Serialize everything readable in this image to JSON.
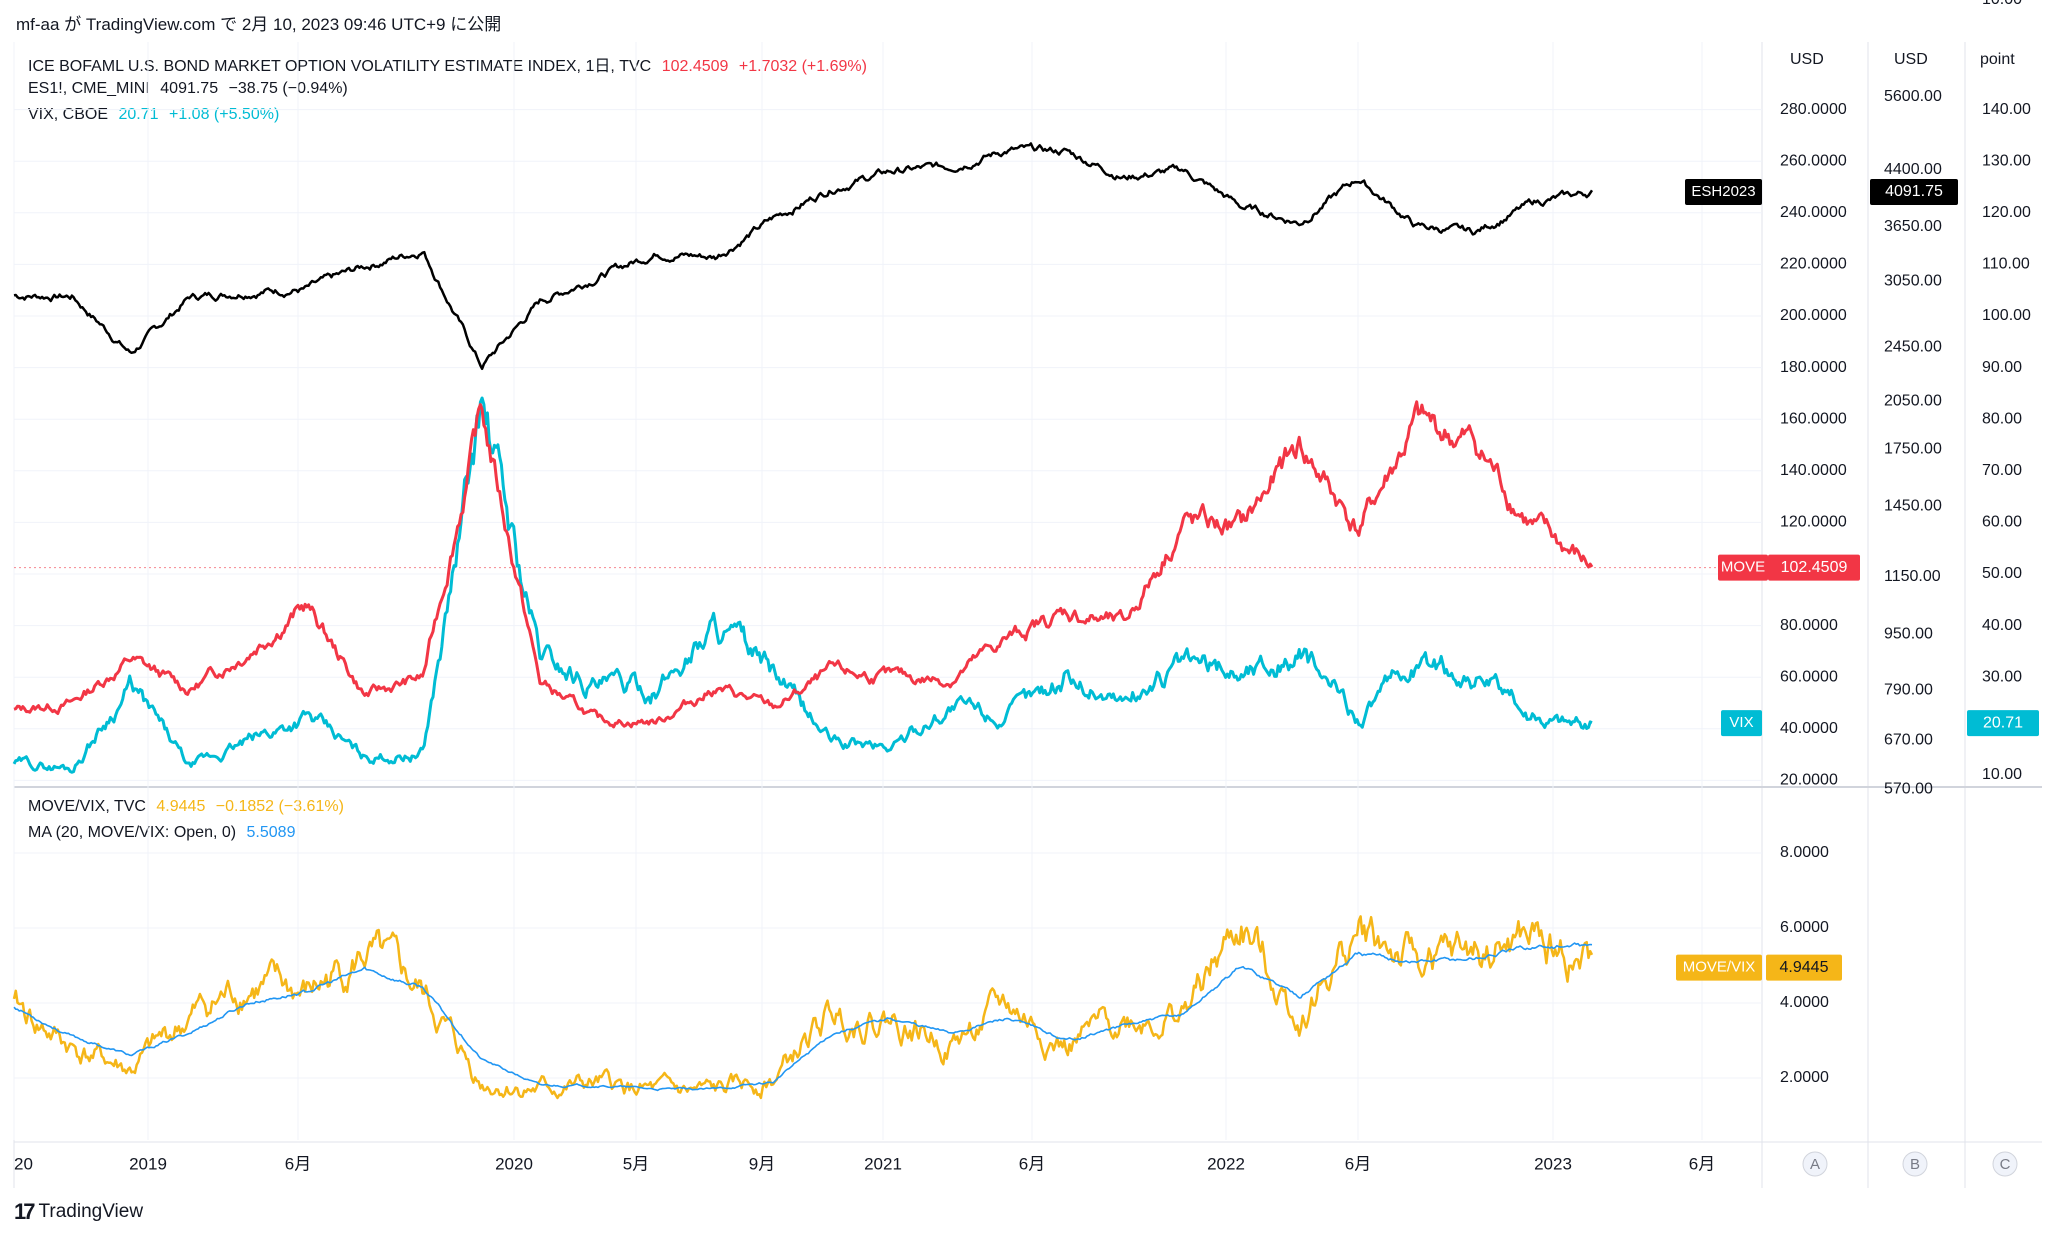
{
  "header": {
    "publisher": "mf-aa",
    "text": "が TradingView.com で 2月 10, 2023 09:46 UTC+9 に公開"
  },
  "legend_top": [
    {
      "name": "ICE BOFAML U.S. BOND MARKET OPTION VOLATILITY ESTIMATE INDEX, 1日, TVC",
      "value": "102.4509",
      "change": "+1.7032 (+1.69%)",
      "color": "#f23645"
    },
    {
      "name": "ES1!, CME_MINI",
      "value": "4091.75",
      "change": "−38.75 (−0.94%)",
      "color": "#131722"
    },
    {
      "name": "VIX, CBOE",
      "value": "20.71",
      "change": "+1.08 (+5.50%)",
      "color": "#00bcd4"
    }
  ],
  "legend_bottom": [
    {
      "name": "MOVE/VIX, TVC",
      "value": "4.9445",
      "change": "−0.1852 (−3.61%)",
      "color": "#f5b618"
    },
    {
      "name": "MA (20, MOVE/VIX: Open, 0)",
      "value": "5.5089",
      "change": "",
      "color": "#2196f3"
    }
  ],
  "axes": {
    "unit_a": "USD",
    "unit_b": "USD",
    "unit_c": "point",
    "scale_a_ticks": [
      "280.0000",
      "260.0000",
      "240.0000",
      "220.0000",
      "200.0000",
      "180.0000",
      "160.0000",
      "140.0000",
      "120.0000",
      "100.0000",
      "80.0000",
      "60.0000",
      "40.0000",
      "20.0000"
    ],
    "scale_b_ticks": [
      "5600.00",
      "4400.00",
      "3650.00",
      "3050.00",
      "2450.00",
      "2050.00",
      "1750.00",
      "1450.00",
      "1150.00",
      "950.00",
      "790.00",
      "670.00",
      "570.00"
    ],
    "scale_c_ticks": [
      "140.00",
      "130.00",
      "120.00",
      "110.00",
      "100.00",
      "90.00",
      "80.00",
      "70.00",
      "60.00",
      "50.00",
      "40.00",
      "30.00",
      "20.00",
      "10.00"
    ],
    "lower_ticks": [
      "8.0000",
      "6.0000",
      "4.0000",
      "2.0000"
    ],
    "time_labels": [
      "20",
      "2019",
      "6月",
      "2020",
      "5月",
      "9月",
      "2021",
      "6月",
      "2022",
      "6月",
      "2023",
      "6月"
    ],
    "scale_buttons": [
      "A",
      "B",
      "C"
    ]
  },
  "price_labels": {
    "esh": {
      "tag": "ESH2023",
      "value": "4091.75",
      "color": "#000000"
    },
    "move": {
      "tag": "MOVE",
      "value": "102.4509",
      "color": "#f23645"
    },
    "vix": {
      "tag": "VIX",
      "value": "20.71",
      "color": "#00bcd4"
    },
    "ratio": {
      "tag": "MOVE/VIX",
      "value": "4.9445",
      "color": "#f5b618"
    }
  },
  "footer": {
    "brand": "TradingView",
    "logo": "tradingview-logo"
  },
  "chart_data": [
    {
      "type": "line",
      "panel": "upper",
      "x": [
        "2018-09",
        "2018-12",
        "2019-01",
        "2019-04",
        "2019-06",
        "2019-09",
        "2019-12",
        "2020-02",
        "2020-03",
        "2020-04",
        "2020-06",
        "2020-09",
        "2020-10",
        "2021-01",
        "2021-04",
        "2021-07",
        "2021-09",
        "2021-11",
        "2021-12",
        "2022-01",
        "2022-03",
        "2022-05",
        "2022-06",
        "2022-08",
        "2022-09",
        "2022-10",
        "2022-12",
        "2023-02"
      ],
      "series": [
        {
          "name": "ES1!",
          "color": "#000000",
          "scale": "B",
          "values": [
            2910,
            2900,
            2400,
            2890,
            2950,
            2970,
            3200,
            3380,
            2300,
            2850,
            3100,
            3350,
            3300,
            3750,
            4150,
            4380,
            4450,
            4700,
            4680,
            4300,
            4400,
            3900,
            3700,
            4280,
            3650,
            3580,
            3950,
            4091.75
          ]
        },
        {
          "name": "MOVE",
          "color": "#f23645",
          "scale": "A",
          "values": [
            47,
            50,
            67,
            55,
            70,
            88,
            53,
            60,
            163,
            58,
            43,
            43,
            56,
            48,
            62,
            60,
            59,
            75,
            85,
            80,
            120,
            118,
            150,
            117,
            158,
            150,
            118,
            102.45
          ]
        },
        {
          "name": "VIX",
          "color": "#00bcd4",
          "scale": "C",
          "values": [
            13,
            12,
            28,
            12,
            17,
            22,
            14,
            15,
            82,
            34,
            28,
            27,
            40,
            30,
            17,
            16,
            24,
            22,
            30,
            25,
            32,
            31,
            34,
            22,
            32,
            30,
            22,
            20.71
          ]
        }
      ]
    },
    {
      "type": "line",
      "panel": "lower",
      "x": [
        "2018-09",
        "2018-12",
        "2019-01",
        "2019-04",
        "2019-06",
        "2019-09",
        "2019-12",
        "2020-02",
        "2020-03",
        "2020-04",
        "2020-06",
        "2020-09",
        "2020-10",
        "2021-01",
        "2021-04",
        "2021-07",
        "2021-09",
        "2021-11",
        "2021-12",
        "2022-01",
        "2022-03",
        "2022-05",
        "2022-06",
        "2022-08",
        "2022-09",
        "2022-10",
        "2022-12",
        "2023-02"
      ],
      "series": [
        {
          "name": "MOVE/VIX",
          "color": "#f5b618",
          "values": [
            3.9,
            2.8,
            2.2,
            3.6,
            4.5,
            4.2,
            5.3,
            4.2,
            1.9,
            1.7,
            1.8,
            1.6,
            1.6,
            2.0,
            3.7,
            3.6,
            2.9,
            3.9,
            2.8,
            3.6,
            3.7,
            6.0,
            3.6,
            5.9,
            5.0,
            5.3,
            5.6,
            4.94
          ]
        },
        {
          "name": "MA",
          "color": "#2196f3",
          "values": [
            3.9,
            3.1,
            2.6,
            3.2,
            4.0,
            4.3,
            4.9,
            4.4,
            2.5,
            1.8,
            1.8,
            1.7,
            1.7,
            1.9,
            3.2,
            3.6,
            3.2,
            3.6,
            3.0,
            3.4,
            3.7,
            5.0,
            4.2,
            5.3,
            5.1,
            5.2,
            5.5,
            5.51
          ]
        }
      ]
    }
  ]
}
